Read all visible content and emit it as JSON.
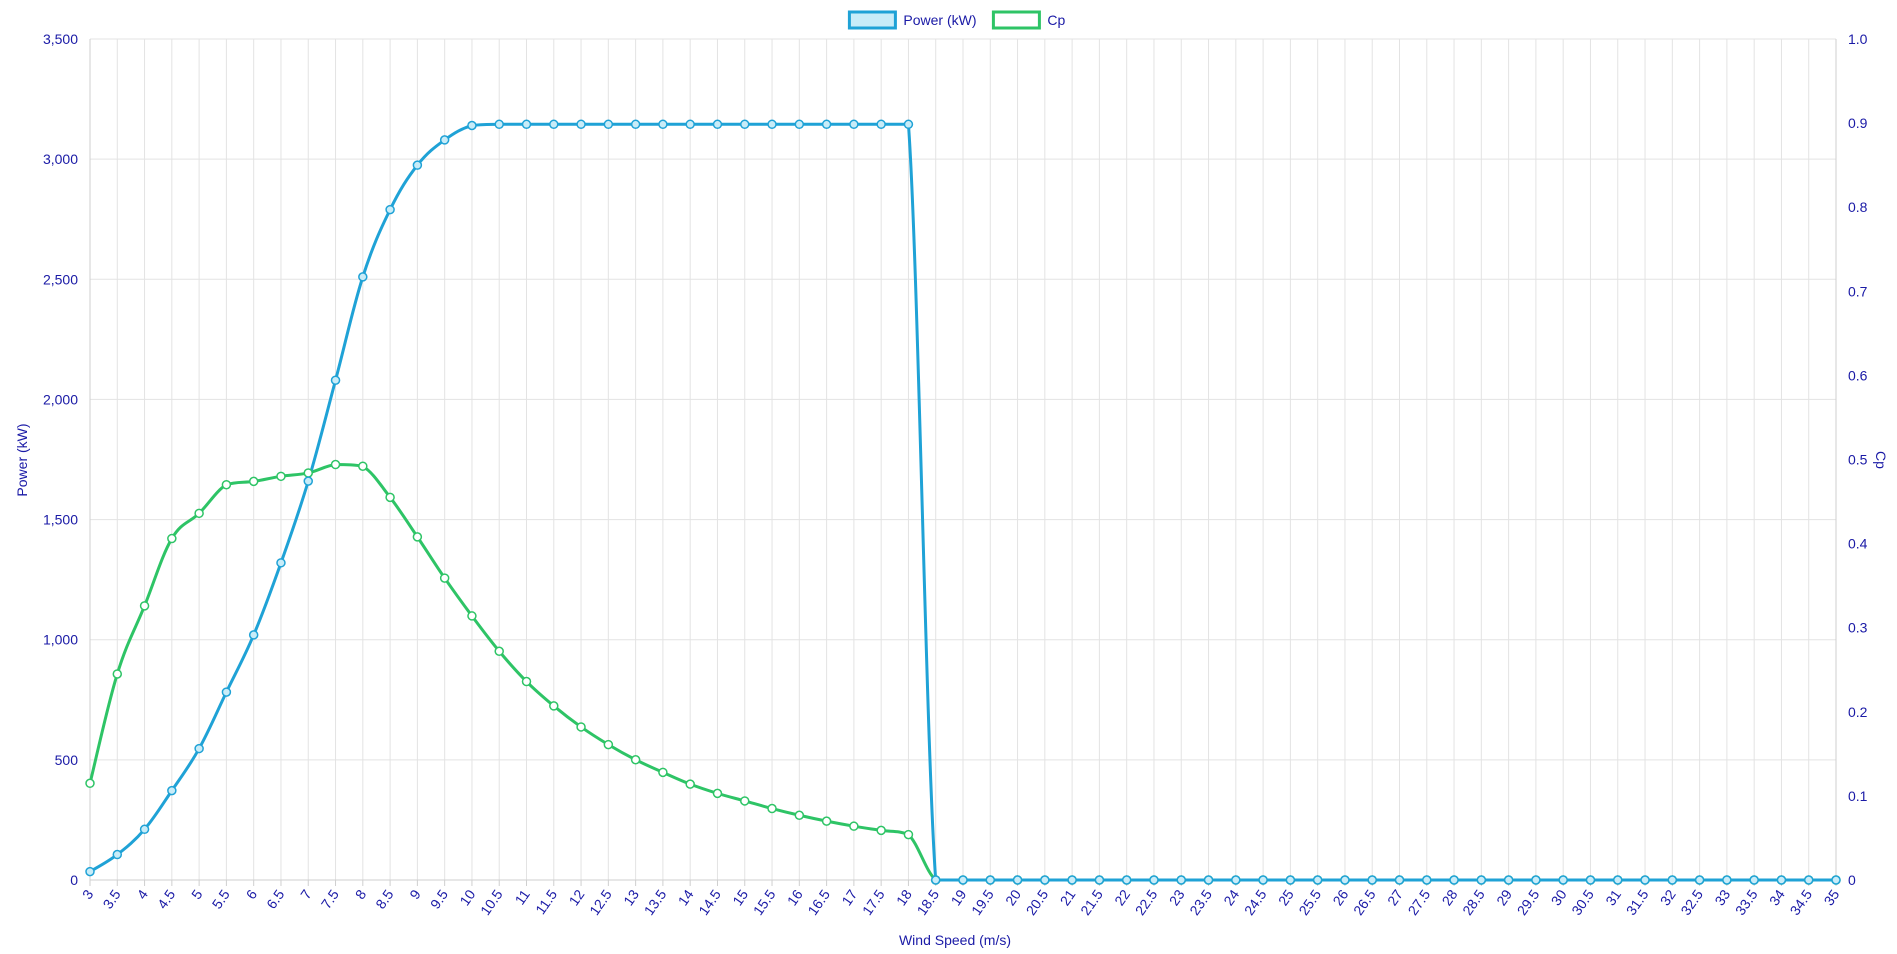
{
  "chart_data": {
    "type": "line",
    "x": [
      "3",
      "3.5",
      "4",
      "4.5",
      "5",
      "5.5",
      "6",
      "6.5",
      "7",
      "7.5",
      "8",
      "8.5",
      "9",
      "9.5",
      "10",
      "10.5",
      "11",
      "11.5",
      "12",
      "12.5",
      "13",
      "13.5",
      "14",
      "14.5",
      "15",
      "15.5",
      "16",
      "16.5",
      "17",
      "17.5",
      "18",
      "18.5",
      "19",
      "19.5",
      "20",
      "20.5",
      "21",
      "21.5",
      "22",
      "22.5",
      "23",
      "23.5",
      "24",
      "24.5",
      "25",
      "25.5",
      "26",
      "26.5",
      "27",
      "27.5",
      "28",
      "28.5",
      "29",
      "29.5",
      "30",
      "30.5",
      "31",
      "31.5",
      "32",
      "32.5",
      "33",
      "33.5",
      "34",
      "34.5",
      "35"
    ],
    "xlabel": "Wind Speed (m/s)",
    "y_left": {
      "label": "Power (kW)",
      "range": [
        0,
        3500
      ],
      "ticks": [
        "0",
        "500",
        "1,000",
        "1,500",
        "2,000",
        "2,500",
        "3,000",
        "3,500"
      ],
      "tick_values": [
        0,
        500,
        1000,
        1500,
        2000,
        2500,
        3000,
        3500
      ]
    },
    "y_right": {
      "label": "Cp",
      "range": [
        0,
        1.0
      ],
      "ticks": [
        "0",
        "0.1",
        "0.2",
        "0.3",
        "0.4",
        "0.5",
        "0.6",
        "0.7",
        "0.8",
        "0.9",
        "1.0"
      ],
      "tick_values": [
        0,
        0.1,
        0.2,
        0.3,
        0.4,
        0.5,
        0.6,
        0.7,
        0.8,
        0.9,
        1.0
      ]
    },
    "grid": true,
    "legend_position": "top-center",
    "series": [
      {
        "name": "Power (kW)",
        "axis": "left",
        "color": "#1fa2d6",
        "fill": "#c8ecf8",
        "values": [
          35,
          106,
          211,
          372,
          547,
          782,
          1020,
          1320,
          1660,
          2080,
          2510,
          2790,
          2975,
          3080,
          3140,
          3145,
          3145,
          3145,
          3145,
          3145,
          3145,
          3145,
          3145,
          3145,
          3145,
          3145,
          3145,
          3145,
          3145,
          3145,
          3145,
          0,
          0,
          0,
          0,
          0,
          0,
          0,
          0,
          0,
          0,
          0,
          0,
          0,
          0,
          0,
          0,
          0,
          0,
          0,
          0,
          0,
          0,
          0,
          0,
          0,
          0,
          0,
          0,
          0,
          0,
          0,
          0,
          0,
          0
        ]
      },
      {
        "name": "Cp",
        "axis": "right",
        "color": "#2ec466",
        "fill": "#ffffff",
        "values": [
          0.115,
          0.245,
          0.326,
          0.406,
          0.436,
          0.47,
          0.474,
          0.48,
          0.484,
          0.494,
          0.492,
          0.455,
          0.408,
          0.359,
          0.314,
          0.272,
          0.236,
          0.207,
          0.182,
          0.161,
          0.143,
          0.128,
          0.114,
          0.103,
          0.094,
          0.085,
          0.077,
          0.07,
          0.064,
          0.059,
          0.054,
          0,
          0,
          0,
          0,
          0,
          0,
          0,
          0,
          0,
          0,
          0,
          0,
          0,
          0,
          0,
          0,
          0,
          0,
          0,
          0,
          0,
          0,
          0,
          0,
          0,
          0,
          0,
          0,
          0,
          0,
          0,
          0,
          0,
          0
        ]
      }
    ]
  }
}
